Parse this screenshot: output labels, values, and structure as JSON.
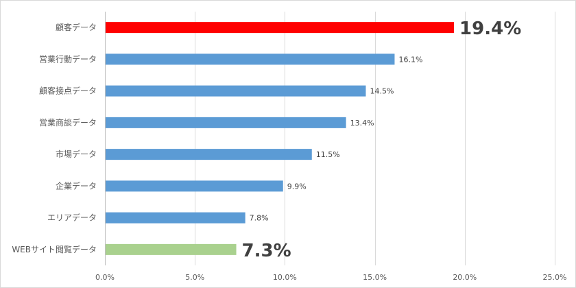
{
  "chart_data": {
    "type": "bar",
    "orientation": "horizontal",
    "categories": [
      "顧客データ",
      "営業行動データ",
      "顧客接点データ",
      "営業商談データ",
      "市場データ",
      "企業データ",
      "エリアデータ",
      "WEBサイト閲覧データ"
    ],
    "values": [
      19.4,
      16.1,
      14.5,
      13.4,
      11.5,
      9.9,
      7.8,
      7.3
    ],
    "value_labels": [
      "19.4%",
      "16.1%",
      "14.5%",
      "13.4%",
      "11.5%",
      "9.9%",
      "7.8%",
      "7.3%"
    ],
    "bar_colors": [
      "#ff0000",
      "#5b9bd5",
      "#5b9bd5",
      "#5b9bd5",
      "#5b9bd5",
      "#5b9bd5",
      "#5b9bd5",
      "#a9d18e"
    ],
    "emphasized": [
      true,
      false,
      false,
      false,
      false,
      false,
      false,
      true
    ],
    "x_ticks": [
      0,
      5,
      10,
      15,
      20,
      25
    ],
    "x_tick_labels": [
      "0.0%",
      "5.0%",
      "10.0%",
      "15.0%",
      "20.0%",
      "25.0%"
    ],
    "xlim": [
      0,
      25
    ],
    "grid": true,
    "legend": "none"
  }
}
